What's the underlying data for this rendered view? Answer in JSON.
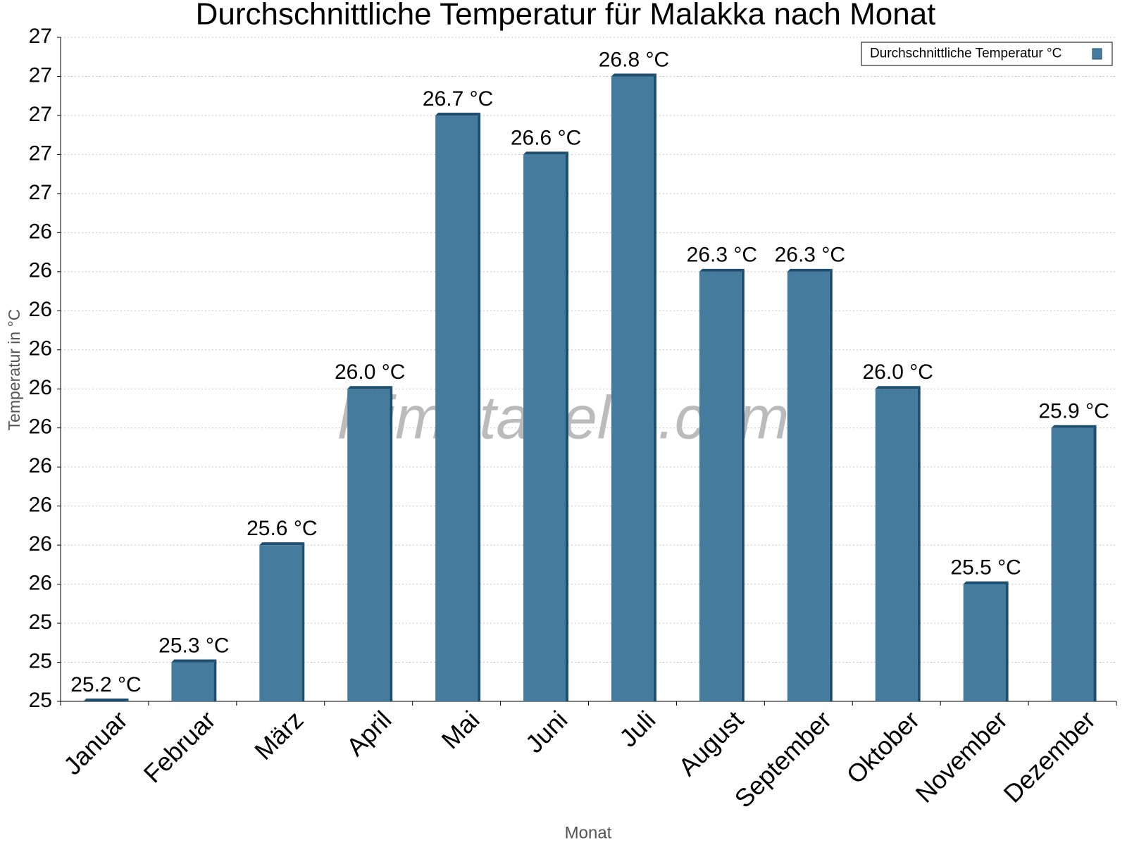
{
  "chart_data": {
    "type": "bar",
    "title": "Durchschnittliche Temperatur für Malakka nach Monat",
    "watermark": "klimatabelle.com",
    "x_label": "Monat",
    "y_label": "Temperatur in °C",
    "categories": [
      "Januar",
      "Februar",
      "März",
      "April",
      "Mai",
      "Juni",
      "Juli",
      "August",
      "September",
      "Oktober",
      "November",
      "Dezember"
    ],
    "series": [
      {
        "name": "Durchschnittliche Temperatur °C",
        "color": "#457b9d",
        "values": [
          25.2,
          25.3,
          25.6,
          26.0,
          26.7,
          26.6,
          26.8,
          26.3,
          26.3,
          26.0,
          25.5,
          25.9
        ],
        "value_labels": [
          "25.2 °C",
          "25.3 °C",
          "25.6 °C",
          "26.0 °C",
          "26.7 °C",
          "26.6 °C",
          "26.8 °C",
          "26.3 °C",
          "26.3 °C",
          "26.0 °C",
          "25.5 °C",
          "25.9 °C"
        ]
      }
    ],
    "ylim": [
      25.2,
      26.9
    ],
    "yticks": [
      {
        "value": 25.2,
        "label": "25"
      },
      {
        "value": 25.3,
        "label": "25"
      },
      {
        "value": 25.4,
        "label": "25"
      },
      {
        "value": 25.5,
        "label": "26"
      },
      {
        "value": 25.6,
        "label": "26"
      },
      {
        "value": 25.7,
        "label": "26"
      },
      {
        "value": 25.8,
        "label": "26"
      },
      {
        "value": 25.9,
        "label": "26"
      },
      {
        "value": 26.0,
        "label": "26"
      },
      {
        "value": 26.1,
        "label": "26"
      },
      {
        "value": 26.2,
        "label": "26"
      },
      {
        "value": 26.3,
        "label": "26"
      },
      {
        "value": 26.4,
        "label": "26"
      },
      {
        "value": 26.5,
        "label": "27"
      },
      {
        "value": 26.6,
        "label": "27"
      },
      {
        "value": 26.7,
        "label": "27"
      },
      {
        "value": 26.8,
        "label": "27"
      },
      {
        "value": 26.9,
        "label": "27"
      }
    ],
    "grid": true,
    "legend": "top-right"
  }
}
